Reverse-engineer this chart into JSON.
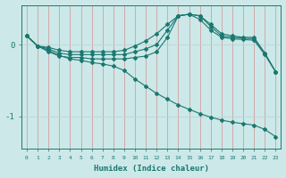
{
  "xlabel": "Humidex (Indice chaleur)",
  "bg_color": "#cce8e8",
  "grid_color_v": "#d4a0a0",
  "grid_color_h": "#b8d4d4",
  "line_color": "#1a7870",
  "xlim": [
    -0.5,
    23.5
  ],
  "ylim": [
    -1.45,
    0.55
  ],
  "yticks": [
    0.0,
    -1.0
  ],
  "ytick_labels": [
    "0",
    "-1"
  ],
  "xticks": [
    0,
    1,
    2,
    3,
    4,
    5,
    6,
    7,
    8,
    9,
    10,
    11,
    12,
    13,
    14,
    15,
    16,
    17,
    18,
    19,
    20,
    21,
    22,
    23
  ],
  "figsize": [
    3.2,
    2.0
  ],
  "dpi": 100,
  "series": [
    {
      "x": [
        0,
        1,
        2,
        3,
        4,
        5,
        6,
        7,
        8,
        9,
        10,
        11,
        12,
        13,
        14,
        15,
        16,
        17,
        18,
        19,
        20,
        21,
        22,
        23
      ],
      "y": [
        0.12,
        -0.02,
        -0.04,
        -0.08,
        -0.1,
        -0.1,
        -0.1,
        -0.1,
        -0.1,
        -0.08,
        -0.02,
        0.05,
        0.15,
        0.28,
        0.4,
        0.42,
        0.4,
        0.28,
        0.15,
        0.12,
        0.1,
        0.1,
        -0.12,
        -0.38
      ]
    },
    {
      "x": [
        0,
        1,
        2,
        3,
        4,
        5,
        6,
        7,
        8,
        9,
        10,
        11,
        12,
        13,
        14,
        15,
        16,
        17,
        18,
        19,
        20,
        21,
        22,
        23
      ],
      "y": [
        0.12,
        -0.02,
        -0.06,
        -0.12,
        -0.14,
        -0.14,
        -0.14,
        -0.14,
        -0.14,
        -0.14,
        -0.1,
        -0.06,
        0.0,
        0.2,
        0.4,
        0.42,
        0.4,
        0.25,
        0.12,
        0.1,
        0.09,
        0.08,
        -0.12,
        -0.38
      ]
    },
    {
      "x": [
        0,
        1,
        2,
        3,
        4,
        5,
        6,
        7,
        8,
        9,
        10,
        11,
        12,
        13,
        14,
        15,
        16,
        17,
        18,
        19,
        20,
        21,
        22,
        23
      ],
      "y": [
        0.12,
        -0.02,
        -0.1,
        -0.16,
        -0.18,
        -0.18,
        -0.2,
        -0.2,
        -0.2,
        -0.2,
        -0.18,
        -0.16,
        -0.1,
        0.1,
        0.4,
        0.42,
        0.35,
        0.2,
        0.1,
        0.08,
        0.07,
        0.06,
        -0.14,
        -0.38
      ]
    },
    {
      "x": [
        0,
        1,
        2,
        3,
        4,
        5,
        6,
        7,
        8,
        9,
        10,
        11,
        12,
        13,
        14,
        15,
        16,
        17,
        18,
        19,
        20,
        21,
        22,
        23
      ],
      "y": [
        0.12,
        -0.02,
        -0.08,
        -0.15,
        -0.2,
        -0.22,
        -0.25,
        -0.27,
        -0.3,
        -0.36,
        -0.48,
        -0.58,
        -0.68,
        -0.76,
        -0.84,
        -0.9,
        -0.96,
        -1.01,
        -1.05,
        -1.08,
        -1.1,
        -1.12,
        -1.18,
        -1.28
      ]
    }
  ]
}
